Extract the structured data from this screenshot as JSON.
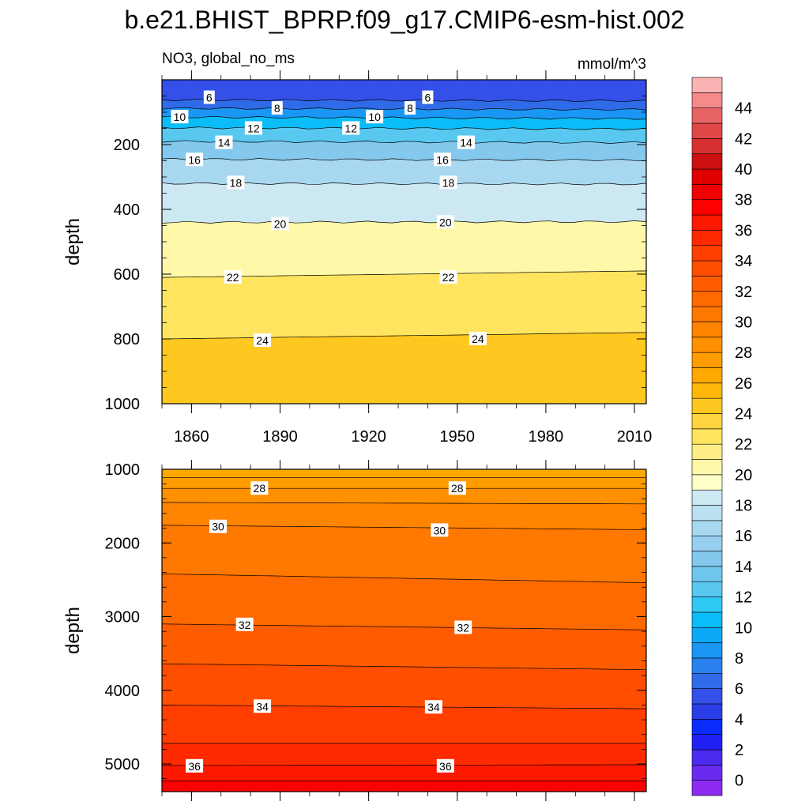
{
  "title": "b.e21.BHIST_BPRP.f09_g17.CMIP6-esm-hist.002",
  "variable_label": "NO3, global_no_ms",
  "units_label": "mmol/m^3",
  "colors": {
    "levels": [
      "#8e2bf0",
      "#6a2bf0",
      "#4b2bf0",
      "#2020f5",
      "#0a2cff",
      "#2a3ee8",
      "#3450e8",
      "#2f6ae8",
      "#2a80ee",
      "#1a96f5",
      "#0aaaf8",
      "#0abcf8",
      "#30c8f5",
      "#58c8f0",
      "#6ec8ee",
      "#84c8ee",
      "#96d0ee",
      "#a8d8f0",
      "#bce2f2",
      "#cce8f2",
      "#ffffc8",
      "#fff8a8",
      "#ffee88",
      "#ffe460",
      "#ffd440",
      "#ffc820",
      "#ffb80a",
      "#ffa800",
      "#ff9c00",
      "#ff9000",
      "#ff8400",
      "#ff7800",
      "#ff6a00",
      "#ff5c00",
      "#ff4e00",
      "#ff3e00",
      "#ff2a00",
      "#ff1800",
      "#ff0000",
      "#f00000",
      "#e00000",
      "#cc1010",
      "#d83030",
      "#e04848",
      "#e86464",
      "#f48a8a",
      "#fab4b4"
    ]
  },
  "chart_data": [
    {
      "type": "contour",
      "panel": "upper",
      "x": [
        1850,
        2014
      ],
      "xticks": [
        1860,
        1890,
        1920,
        1950,
        1980,
        2010
      ],
      "ylabel": "depth",
      "ylim": [
        0,
        1000
      ],
      "yticks": [
        200,
        400,
        600,
        800,
        1000
      ],
      "contours": [
        {
          "value": 6,
          "depth_start": 62,
          "depth_end": 65
        },
        {
          "value": 8,
          "depth_start": 88,
          "depth_end": 92
        },
        {
          "value": 10,
          "depth_start": 115,
          "depth_end": 120
        },
        {
          "value": 12,
          "depth_start": 148,
          "depth_end": 152
        },
        {
          "value": 14,
          "depth_start": 190,
          "depth_end": 194
        },
        {
          "value": 16,
          "depth_start": 245,
          "depth_end": 248
        },
        {
          "value": 18,
          "depth_start": 320,
          "depth_end": 322
        },
        {
          "value": 20,
          "depth_start": 440,
          "depth_end": 438
        },
        {
          "value": 22,
          "depth_start": 610,
          "depth_end": 590
        },
        {
          "value": 24,
          "depth_start": 800,
          "depth_end": 780
        }
      ],
      "contour_labels": [
        {
          "text": "6",
          "year": 1866,
          "depth": 55
        },
        {
          "text": "6",
          "year": 1940,
          "depth": 55
        },
        {
          "text": "8",
          "year": 1889,
          "depth": 88
        },
        {
          "text": "8",
          "year": 1934,
          "depth": 88
        },
        {
          "text": "10",
          "year": 1856,
          "depth": 115
        },
        {
          "text": "10",
          "year": 1922,
          "depth": 115
        },
        {
          "text": "12",
          "year": 1881,
          "depth": 150
        },
        {
          "text": "12",
          "year": 1914,
          "depth": 150
        },
        {
          "text": "14",
          "year": 1871,
          "depth": 194
        },
        {
          "text": "14",
          "year": 1953,
          "depth": 194
        },
        {
          "text": "16",
          "year": 1861,
          "depth": 247
        },
        {
          "text": "16",
          "year": 1945,
          "depth": 247
        },
        {
          "text": "18",
          "year": 1875,
          "depth": 318
        },
        {
          "text": "18",
          "year": 1947,
          "depth": 318
        },
        {
          "text": "20",
          "year": 1890,
          "depth": 445
        },
        {
          "text": "20",
          "year": 1946,
          "depth": 440
        },
        {
          "text": "22",
          "year": 1874,
          "depth": 610
        },
        {
          "text": "22",
          "year": 1947,
          "depth": 610
        },
        {
          "text": "24",
          "year": 1884,
          "depth": 805
        },
        {
          "text": "24",
          "year": 1957,
          "depth": 800
        }
      ]
    },
    {
      "type": "contour",
      "panel": "lower",
      "x": [
        1850,
        2014
      ],
      "xticks": [
        1860,
        1890,
        1920,
        1950,
        1980,
        2010
      ],
      "ylabel": "depth",
      "ylim": [
        1000,
        5375
      ],
      "yticks": [
        1000,
        2000,
        3000,
        4000,
        5000
      ],
      "contours": [
        {
          "value": 27,
          "depth_start": 1110,
          "depth_end": 1110
        },
        {
          "value": 28,
          "depth_start": 1260,
          "depth_end": 1260
        },
        {
          "value": 29,
          "depth_start": 1450,
          "depth_end": 1470
        },
        {
          "value": 30,
          "depth_start": 1760,
          "depth_end": 1820
        },
        {
          "value": 31,
          "depth_start": 2420,
          "depth_end": 2540
        },
        {
          "value": 32,
          "depth_start": 3100,
          "depth_end": 3180
        },
        {
          "value": 33,
          "depth_start": 3640,
          "depth_end": 3720
        },
        {
          "value": 34,
          "depth_start": 4200,
          "depth_end": 4250
        },
        {
          "value": 35,
          "depth_start": 4720,
          "depth_end": 4720
        },
        {
          "value": 36,
          "depth_start": 5020,
          "depth_end": 5010
        },
        {
          "value": 37,
          "depth_start": 5230,
          "depth_end": 5230
        }
      ],
      "contour_labels": [
        {
          "text": "28",
          "year": 1883,
          "depth": 1260
        },
        {
          "text": "28",
          "year": 1950,
          "depth": 1260
        },
        {
          "text": "30",
          "year": 1869,
          "depth": 1780
        },
        {
          "text": "30",
          "year": 1944,
          "depth": 1830
        },
        {
          "text": "32",
          "year": 1878,
          "depth": 3110
        },
        {
          "text": "32",
          "year": 1952,
          "depth": 3150
        },
        {
          "text": "34",
          "year": 1884,
          "depth": 4220
        },
        {
          "text": "34",
          "year": 1942,
          "depth": 4230
        },
        {
          "text": "36",
          "year": 1861,
          "depth": 5030
        },
        {
          "text": "36",
          "year": 1946,
          "depth": 5030
        }
      ]
    }
  ],
  "colorbar": {
    "range": [
      -1,
      46
    ],
    "labels": [
      "0",
      "2",
      "4",
      "6",
      "8",
      "10",
      "12",
      "14",
      "16",
      "18",
      "20",
      "22",
      "24",
      "26",
      "28",
      "30",
      "32",
      "34",
      "36",
      "38",
      "40",
      "42",
      "44"
    ]
  }
}
